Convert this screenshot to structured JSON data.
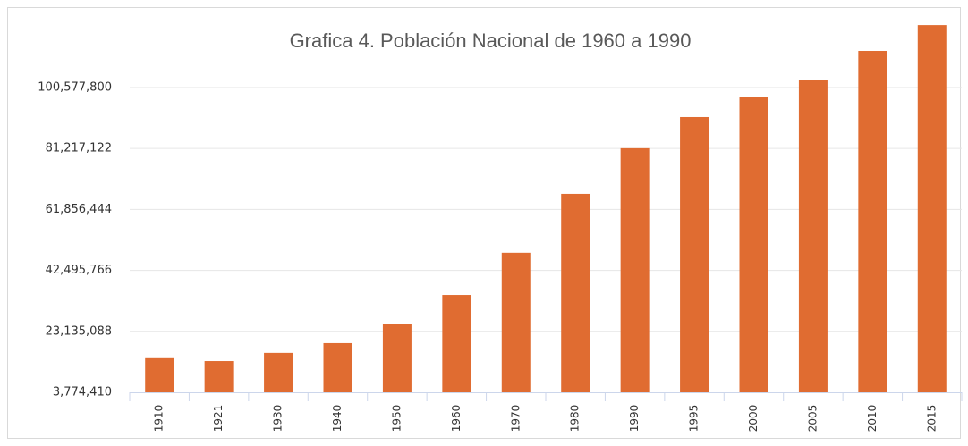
{
  "chart_data": {
    "type": "bar",
    "title": "Grafica 4. Población Nacional de 1960 a 1990",
    "categories": [
      "1910",
      "1921",
      "1930",
      "1940",
      "1950",
      "1960",
      "1970",
      "1980",
      "1990",
      "1995",
      "2000",
      "2005",
      "2010",
      "2015"
    ],
    "values": [
      14900000,
      13700000,
      16300000,
      19400000,
      25600000,
      34700000,
      48100000,
      66800000,
      81300000,
      91200000,
      97500000,
      103100000,
      112200000,
      120400000
    ],
    "color": "#e06c31",
    "ylim": [
      3774410,
      122700000
    ],
    "yticks": [
      {
        "value": 3774410,
        "label": "3,774,410"
      },
      {
        "value": 23135088,
        "label": "23,135,088"
      },
      {
        "value": 42495766,
        "label": "42,495,766"
      },
      {
        "value": 61856444,
        "label": "61,856,444"
      },
      {
        "value": 81217122,
        "label": "81,217,122"
      },
      {
        "value": 100577800,
        "label": "100,577,800"
      }
    ],
    "grid": true
  }
}
